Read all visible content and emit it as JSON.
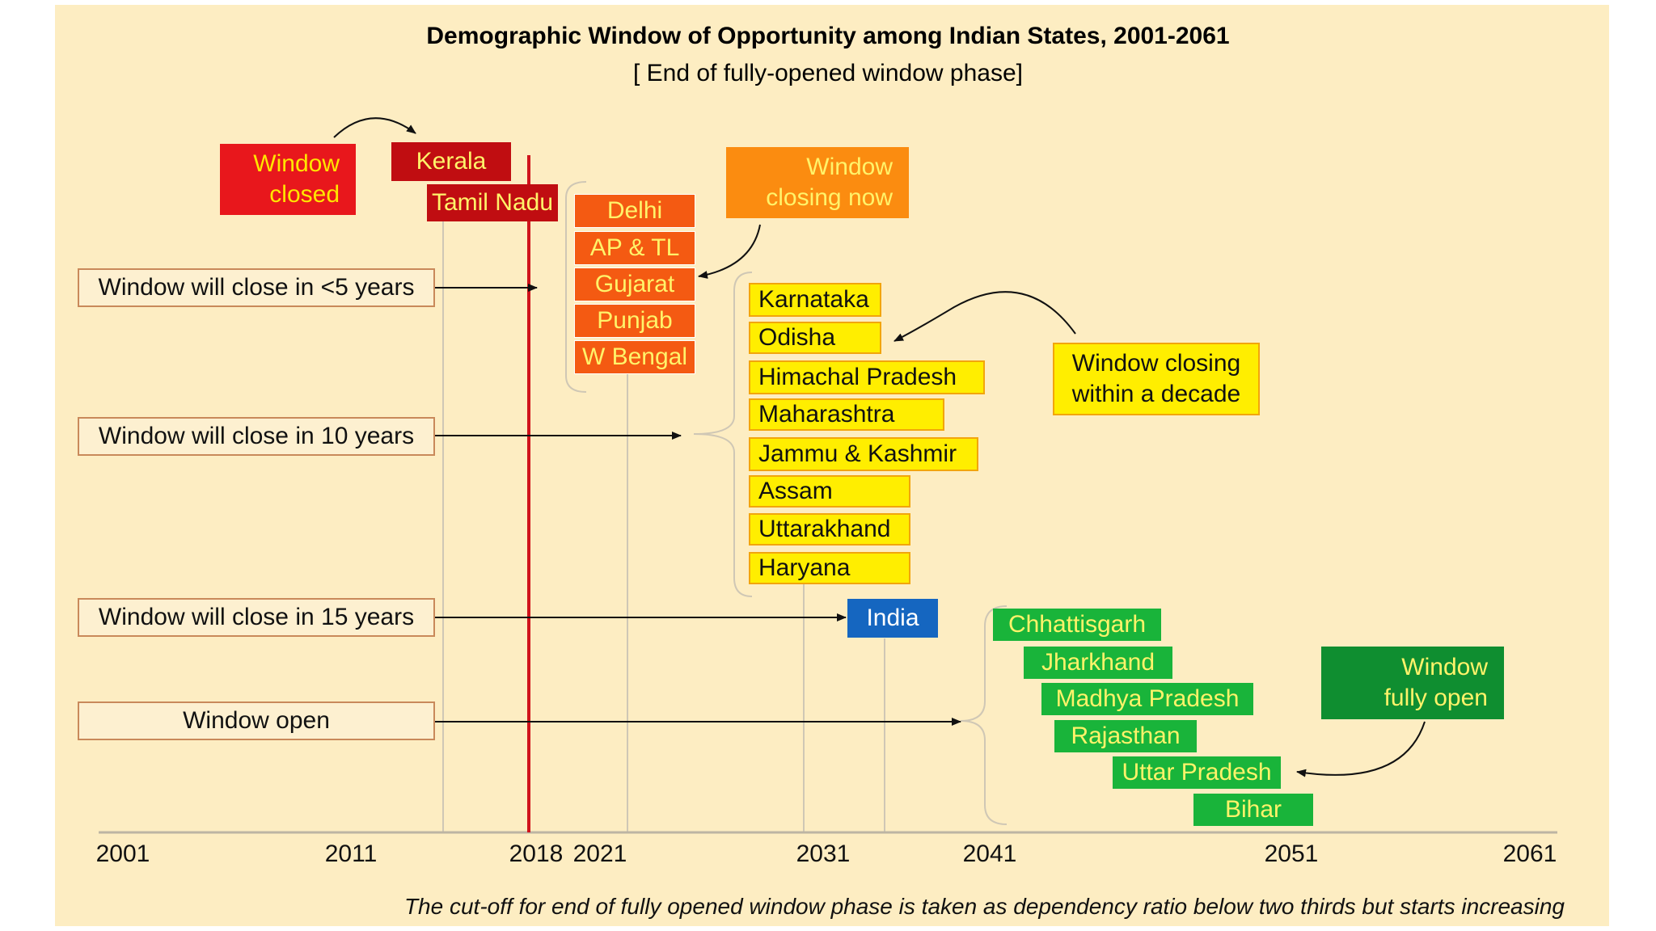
{
  "title": "Demographic Window of Opportunity among Indian States, 2001-2061",
  "subtitle": "[ End of fully-opened window phase]",
  "timeline_years": [
    "2001",
    "2011",
    "2018",
    "2021",
    "2031",
    "2041",
    "2051",
    "2061"
  ],
  "left_labels": {
    "close_5": "Window will close in <5 years",
    "close_10": "Window will close in 10 years",
    "close_15": "Window will close in 15 years",
    "open": "Window open"
  },
  "notes": {
    "closed": "Window\nclosed",
    "closing_now": "Window\nclosing now",
    "closing_decade": "Window closing\nwithin a decade",
    "fully_open": "Window\nfully open"
  },
  "states": {
    "closed": [
      "Kerala",
      "Tamil Nadu"
    ],
    "closing_now": [
      "Delhi",
      "AP & TL",
      "Gujarat",
      "Punjab",
      "W Bengal"
    ],
    "closing_decade": [
      "Karnataka",
      "Odisha",
      "Himachal Pradesh",
      "Maharashtra",
      "Jammu & Kashmir",
      "Assam",
      "Uttarakhand",
      "Haryana"
    ],
    "india": "India",
    "open": [
      "Chhattisgarh",
      "Jharkhand",
      "Madhya Pradesh",
      "Rajasthan",
      "Uttar Pradesh",
      "Bihar"
    ]
  },
  "footnote": "The cut-off for end of fully opened window phase is taken as dependency ratio below two thirds but starts increasing",
  "colors": {
    "background": "#fdedc2",
    "red": "#e8171c",
    "dark_red": "#c00d11",
    "orange_red": "#f45a12",
    "orange": "#fb8c10",
    "yellow": "#ffee00",
    "green": "#19b43a",
    "dark_green": "#0f8e30",
    "blue": "#1566c0",
    "cutoff_line": "#d0141c"
  }
}
